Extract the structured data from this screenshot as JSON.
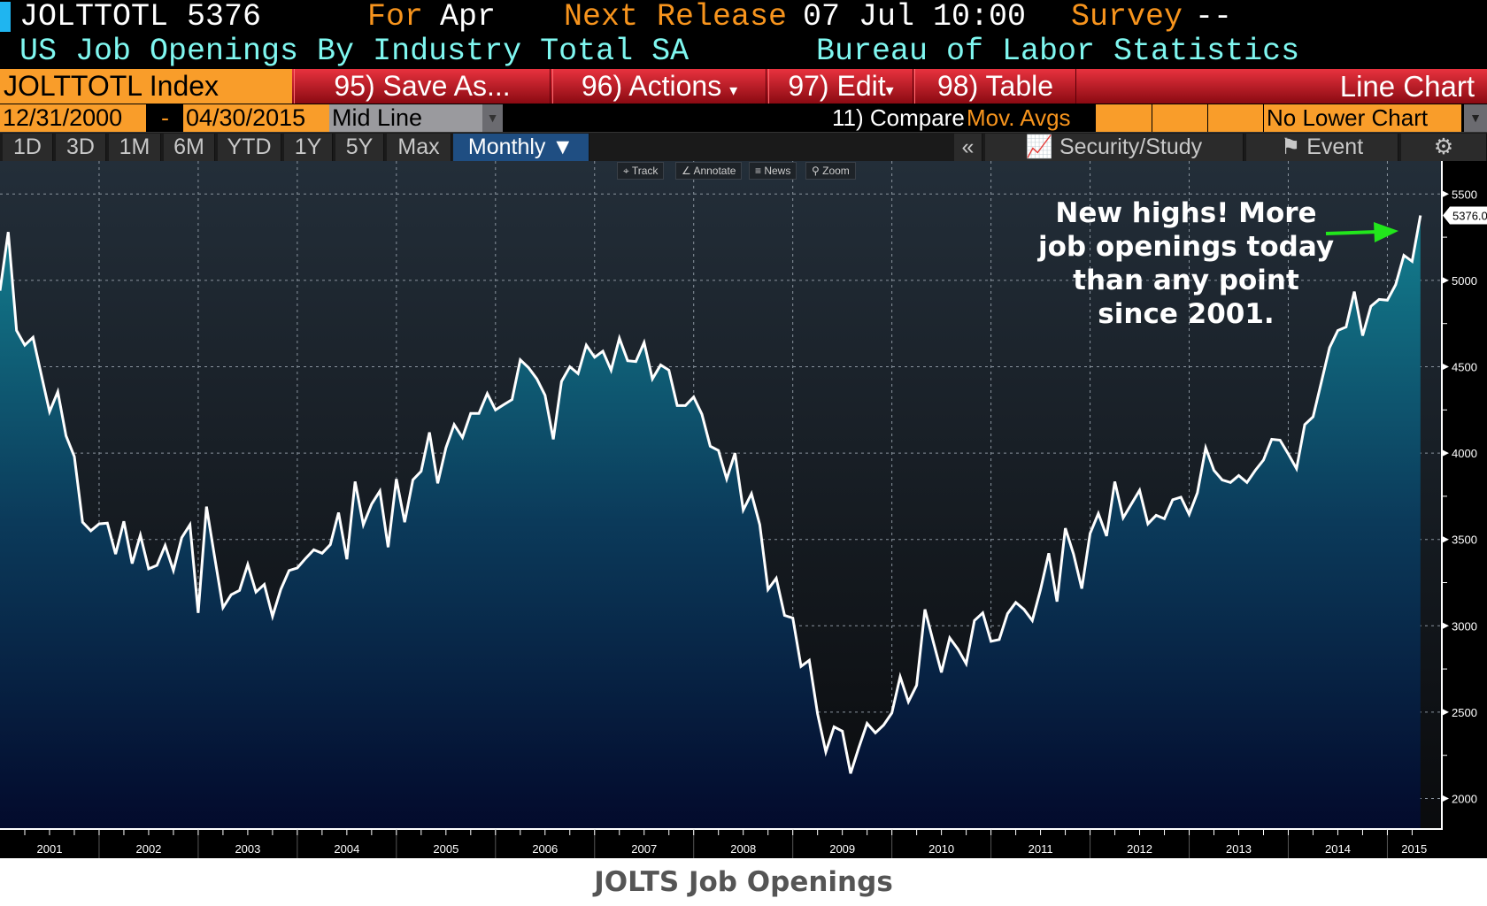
{
  "header": {
    "ticker": "JOLTTOTL 5376",
    "for_label": "For",
    "for_value": "Apr",
    "next_release_label": "Next Release",
    "next_release_value": "07 Jul 10:00",
    "survey_label": "Survey",
    "survey_value": "--",
    "description": "US Job Openings By Industry Total SA",
    "source": "Bureau of Labor Statistics"
  },
  "toolbar": {
    "security": "JOLTTOTL Index",
    "save_as": "95) Save As...",
    "actions": "96) Actions",
    "edit": "97) Edit",
    "table": "98) Table",
    "chart_type": "Line Chart",
    "dropdown_glyph": "▾"
  },
  "range": {
    "start": "12/31/2000",
    "separator": "-",
    "end": "04/30/2015",
    "mode": "Mid Line",
    "compare": "11) Compare",
    "mov_avgs": "Mov. Avgs",
    "lower_chart": "No Lower Chart"
  },
  "periods": {
    "buttons": [
      "1D",
      "3D",
      "1M",
      "6M",
      "YTD",
      "1Y",
      "5Y",
      "Max"
    ],
    "frequency": "Monthly ▼",
    "collapse": "«",
    "security_study": "Security/Study",
    "event": "Event"
  },
  "mini_toolbar": {
    "track": "Track",
    "annotate": "Annotate",
    "news": "News",
    "zoom": "Zoom"
  },
  "annotation": {
    "lines": [
      "New highs!  More",
      "job openings today",
      "than any point",
      "since 2001."
    ],
    "arrow_color": "#22e61c"
  },
  "footer_title": "JOLTS Job Openings",
  "colors": {
    "orange": "#f99d2a",
    "red": "#d0202c",
    "cyan": "#7ff7f0",
    "line": "#ffffff",
    "fill_top": "#137f8f",
    "fill_bottom": "#030a2c"
  },
  "chart_data": {
    "type": "area",
    "title": "JOLTS Job Openings",
    "series_name": "JOLTTOTL Index",
    "start_month": "2000-12",
    "frequency": "monthly",
    "last_value_label": "5376.0",
    "ylim": [
      1850,
      5700
    ],
    "y_ticks": [
      2000,
      2500,
      3000,
      3500,
      4000,
      4500,
      5000,
      5500
    ],
    "y_tick_labels": [
      "2000",
      "2500",
      "3000",
      "3500",
      "4000",
      "4500",
      "5000",
      "5500"
    ],
    "x_tick_labels": [
      "2001",
      "2002",
      "2003",
      "2004",
      "2005",
      "2006",
      "2007",
      "2008",
      "2009",
      "2010",
      "2011",
      "2012",
      "2013",
      "2014",
      "2015"
    ],
    "grid": true,
    "values": [
      4940,
      5280,
      4710,
      4625,
      4670,
      4455,
      4240,
      4355,
      4100,
      3980,
      3600,
      3550,
      3590,
      3595,
      3415,
      3605,
      3360,
      3525,
      3330,
      3350,
      3465,
      3320,
      3510,
      3585,
      3075,
      3690,
      3395,
      3105,
      3180,
      3205,
      3355,
      3195,
      3240,
      3055,
      3210,
      3320,
      3335,
      3390,
      3440,
      3420,
      3470,
      3655,
      3385,
      3835,
      3585,
      3705,
      3780,
      3455,
      3850,
      3600,
      3845,
      3895,
      4120,
      3825,
      4030,
      4165,
      4090,
      4230,
      4230,
      4345,
      4250,
      4280,
      4310,
      4540,
      4495,
      4430,
      4335,
      4080,
      4415,
      4500,
      4460,
      4625,
      4555,
      4590,
      4480,
      4665,
      4535,
      4530,
      4640,
      4430,
      4510,
      4480,
      4275,
      4275,
      4325,
      4225,
      4040,
      4015,
      3850,
      4000,
      3670,
      3765,
      3585,
      3210,
      3275,
      3060,
      3045,
      2765,
      2800,
      2490,
      2270,
      2415,
      2390,
      2145,
      2295,
      2435,
      2380,
      2425,
      2495,
      2705,
      2560,
      2655,
      3095,
      2910,
      2730,
      2930,
      2865,
      2780,
      3030,
      3075,
      2910,
      2920,
      3070,
      3135,
      3095,
      3030,
      3210,
      3420,
      3140,
      3565,
      3415,
      3215,
      3535,
      3650,
      3520,
      3835,
      3625,
      3705,
      3785,
      3590,
      3640,
      3620,
      3730,
      3745,
      3645,
      3770,
      4030,
      3900,
      3845,
      3830,
      3870,
      3830,
      3900,
      3960,
      4080,
      4075,
      3995,
      3910,
      4165,
      4210,
      4410,
      4610,
      4710,
      4730,
      4935,
      4680,
      4850,
      4890,
      4885,
      4975,
      5145,
      5110,
      5376
    ]
  }
}
